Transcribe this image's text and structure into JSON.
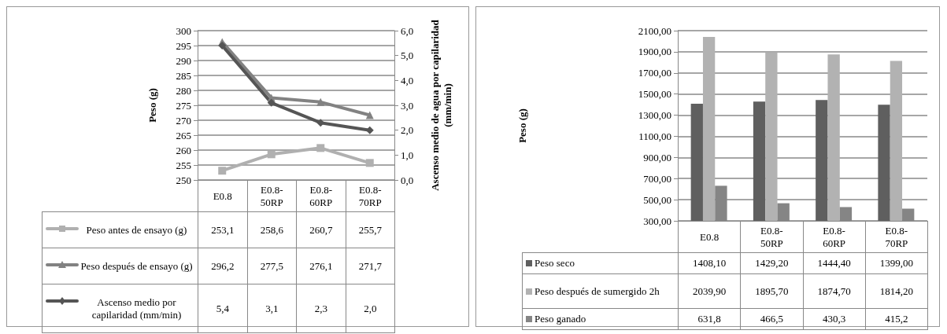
{
  "chart_data": [
    {
      "type": "line",
      "categories": [
        "E0.8",
        "E0.8-50RP",
        "E0.8-60RP",
        "E0.8-70RP"
      ],
      "ylabel": "Peso (g)",
      "y2label": "Ascenso medio de agua por capilaridad (mm/min)",
      "ylim": [
        250,
        300
      ],
      "yticks": [
        250,
        255,
        260,
        265,
        270,
        275,
        280,
        285,
        290,
        295,
        300
      ],
      "y2lim": [
        0,
        6
      ],
      "y2ticks": [
        {
          "value": 0,
          "label": "0,0"
        },
        {
          "value": 1,
          "label": "1,0"
        },
        {
          "value": 2,
          "label": "2,0"
        },
        {
          "value": 3,
          "label": "3,0"
        },
        {
          "value": 4,
          "label": "4,0"
        },
        {
          "value": 5,
          "label": "5,0"
        },
        {
          "value": 6,
          "label": "6,0"
        }
      ],
      "grid": "y",
      "legend": "bottom",
      "series": [
        {
          "name": "Peso antes de ensayo (g)",
          "color": "#b0b0b0",
          "marker": "square",
          "values": [
            253.1,
            258.6,
            260.7,
            255.7
          ],
          "value_labels": [
            "253,1",
            "258,6",
            "260,7",
            "255,7"
          ]
        },
        {
          "name": "Peso después de ensayo (g)",
          "color": "#828282",
          "marker": "triangle",
          "values": [
            296.2,
            277.5,
            276.1,
            271.7
          ],
          "value_labels": [
            "296,2",
            "277,5",
            "276,1",
            "271,7"
          ]
        },
        {
          "name": "Ascenso medio por capilaridad (mm/min)",
          "color": "#555555",
          "marker": "diamond",
          "axis": "y2",
          "values": [
            5.4,
            3.1,
            2.3,
            2.0
          ],
          "value_labels": [
            "5,4",
            "3,1",
            "2,3",
            "2,0"
          ]
        }
      ]
    },
    {
      "type": "bar",
      "categories": [
        "E0.8",
        "E0.8-50RP",
        "E0.8-60RP",
        "E0.8-70RP"
      ],
      "ylabel": "Peso (g)",
      "ylim": [
        300,
        2100
      ],
      "yticks": [
        {
          "value": 300,
          "label": "300,00"
        },
        {
          "value": 500,
          "label": "500,00"
        },
        {
          "value": 700,
          "label": "700,00"
        },
        {
          "value": 900,
          "label": "900,00"
        },
        {
          "value": 1100,
          "label": "1100,00"
        },
        {
          "value": 1300,
          "label": "1300,00"
        },
        {
          "value": 1500,
          "label": "1500,00"
        },
        {
          "value": 1700,
          "label": "1700,00"
        },
        {
          "value": 1900,
          "label": "1900,00"
        },
        {
          "value": 2100,
          "label": "2100,00"
        }
      ],
      "grid": "y",
      "legend": "bottom",
      "series": [
        {
          "name": "Peso seco",
          "color": "#5f5f5f",
          "values": [
            1408.1,
            1429.2,
            1444.4,
            1399.0
          ],
          "value_labels": [
            "1408,10",
            "1429,20",
            "1444,40",
            "1399,00"
          ]
        },
        {
          "name": "Peso después de sumergido 2h",
          "color": "#b2b2b2",
          "values": [
            2039.9,
            1895.7,
            1874.7,
            1814.2
          ],
          "value_labels": [
            "2039,90",
            "1895,70",
            "1874,70",
            "1814,20"
          ]
        },
        {
          "name": "Peso ganado",
          "color": "#858585",
          "values": [
            631.8,
            466.5,
            430.3,
            415.2
          ],
          "value_labels": [
            "631,8",
            "466,5",
            "430,3",
            "415,2"
          ]
        }
      ]
    }
  ]
}
